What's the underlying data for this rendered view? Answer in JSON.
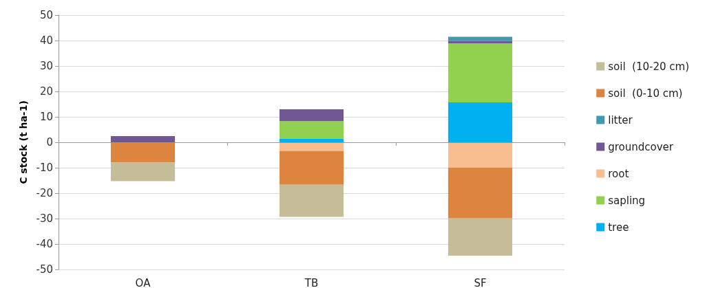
{
  "chart_data": {
    "type": "bar",
    "stacked": true,
    "ylabel": "C stock (t ha-1)",
    "categories": [
      "OA",
      "TB",
      "SF"
    ],
    "series": [
      {
        "name": "tree",
        "color": "#00b0f0",
        "values": [
          0,
          1.5,
          15.7
        ]
      },
      {
        "name": "sapling",
        "color": "#92d050",
        "values": [
          0,
          6.8,
          23.2
        ]
      },
      {
        "name": "root",
        "color": "#f9be8f",
        "values": [
          0,
          -3.4,
          -9.9
        ]
      },
      {
        "name": "groundcover",
        "color": "#725893",
        "values": [
          2.4,
          4.7,
          0.9
        ]
      },
      {
        "name": "litter",
        "color": "#4198af",
        "values": [
          0,
          0,
          1.7
        ]
      },
      {
        "name": "soil  (0-10 cm)",
        "color": "#dd843e",
        "values": [
          -8.0,
          -13.3,
          -20.0
        ]
      },
      {
        "name": "soil  (10-20 cm)",
        "color": "#c4bd97",
        "values": [
          -7.3,
          -12.6,
          -14.7
        ]
      }
    ],
    "ylim": [
      -50,
      50
    ],
    "yticks": [
      -50,
      -40,
      -30,
      -20,
      -10,
      0,
      10,
      20,
      30,
      40,
      50
    ],
    "grid": "y",
    "legend": "right"
  }
}
